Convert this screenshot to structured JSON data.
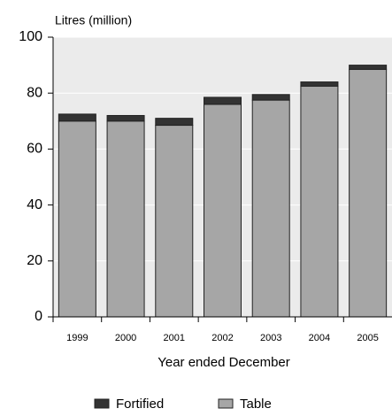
{
  "chart_data": {
    "type": "bar",
    "stacked": true,
    "y_axis_label": "Litres (million)",
    "x_axis_label": "Year ended December",
    "categories": [
      "1999",
      "2000",
      "2001",
      "2002",
      "2003",
      "2004",
      "2005"
    ],
    "series": [
      {
        "name": "Table",
        "color": "#a6a6a6",
        "values": [
          70,
          70,
          68.5,
          76,
          77.5,
          82.5,
          88.5
        ]
      },
      {
        "name": "Fortified",
        "color": "#333333",
        "values": [
          2.5,
          2,
          2.5,
          2.5,
          2,
          1.5,
          1.5
        ]
      }
    ],
    "ylim": [
      0,
      100
    ],
    "yticks": [
      0,
      20,
      40,
      60,
      80,
      100
    ],
    "grid": true
  }
}
